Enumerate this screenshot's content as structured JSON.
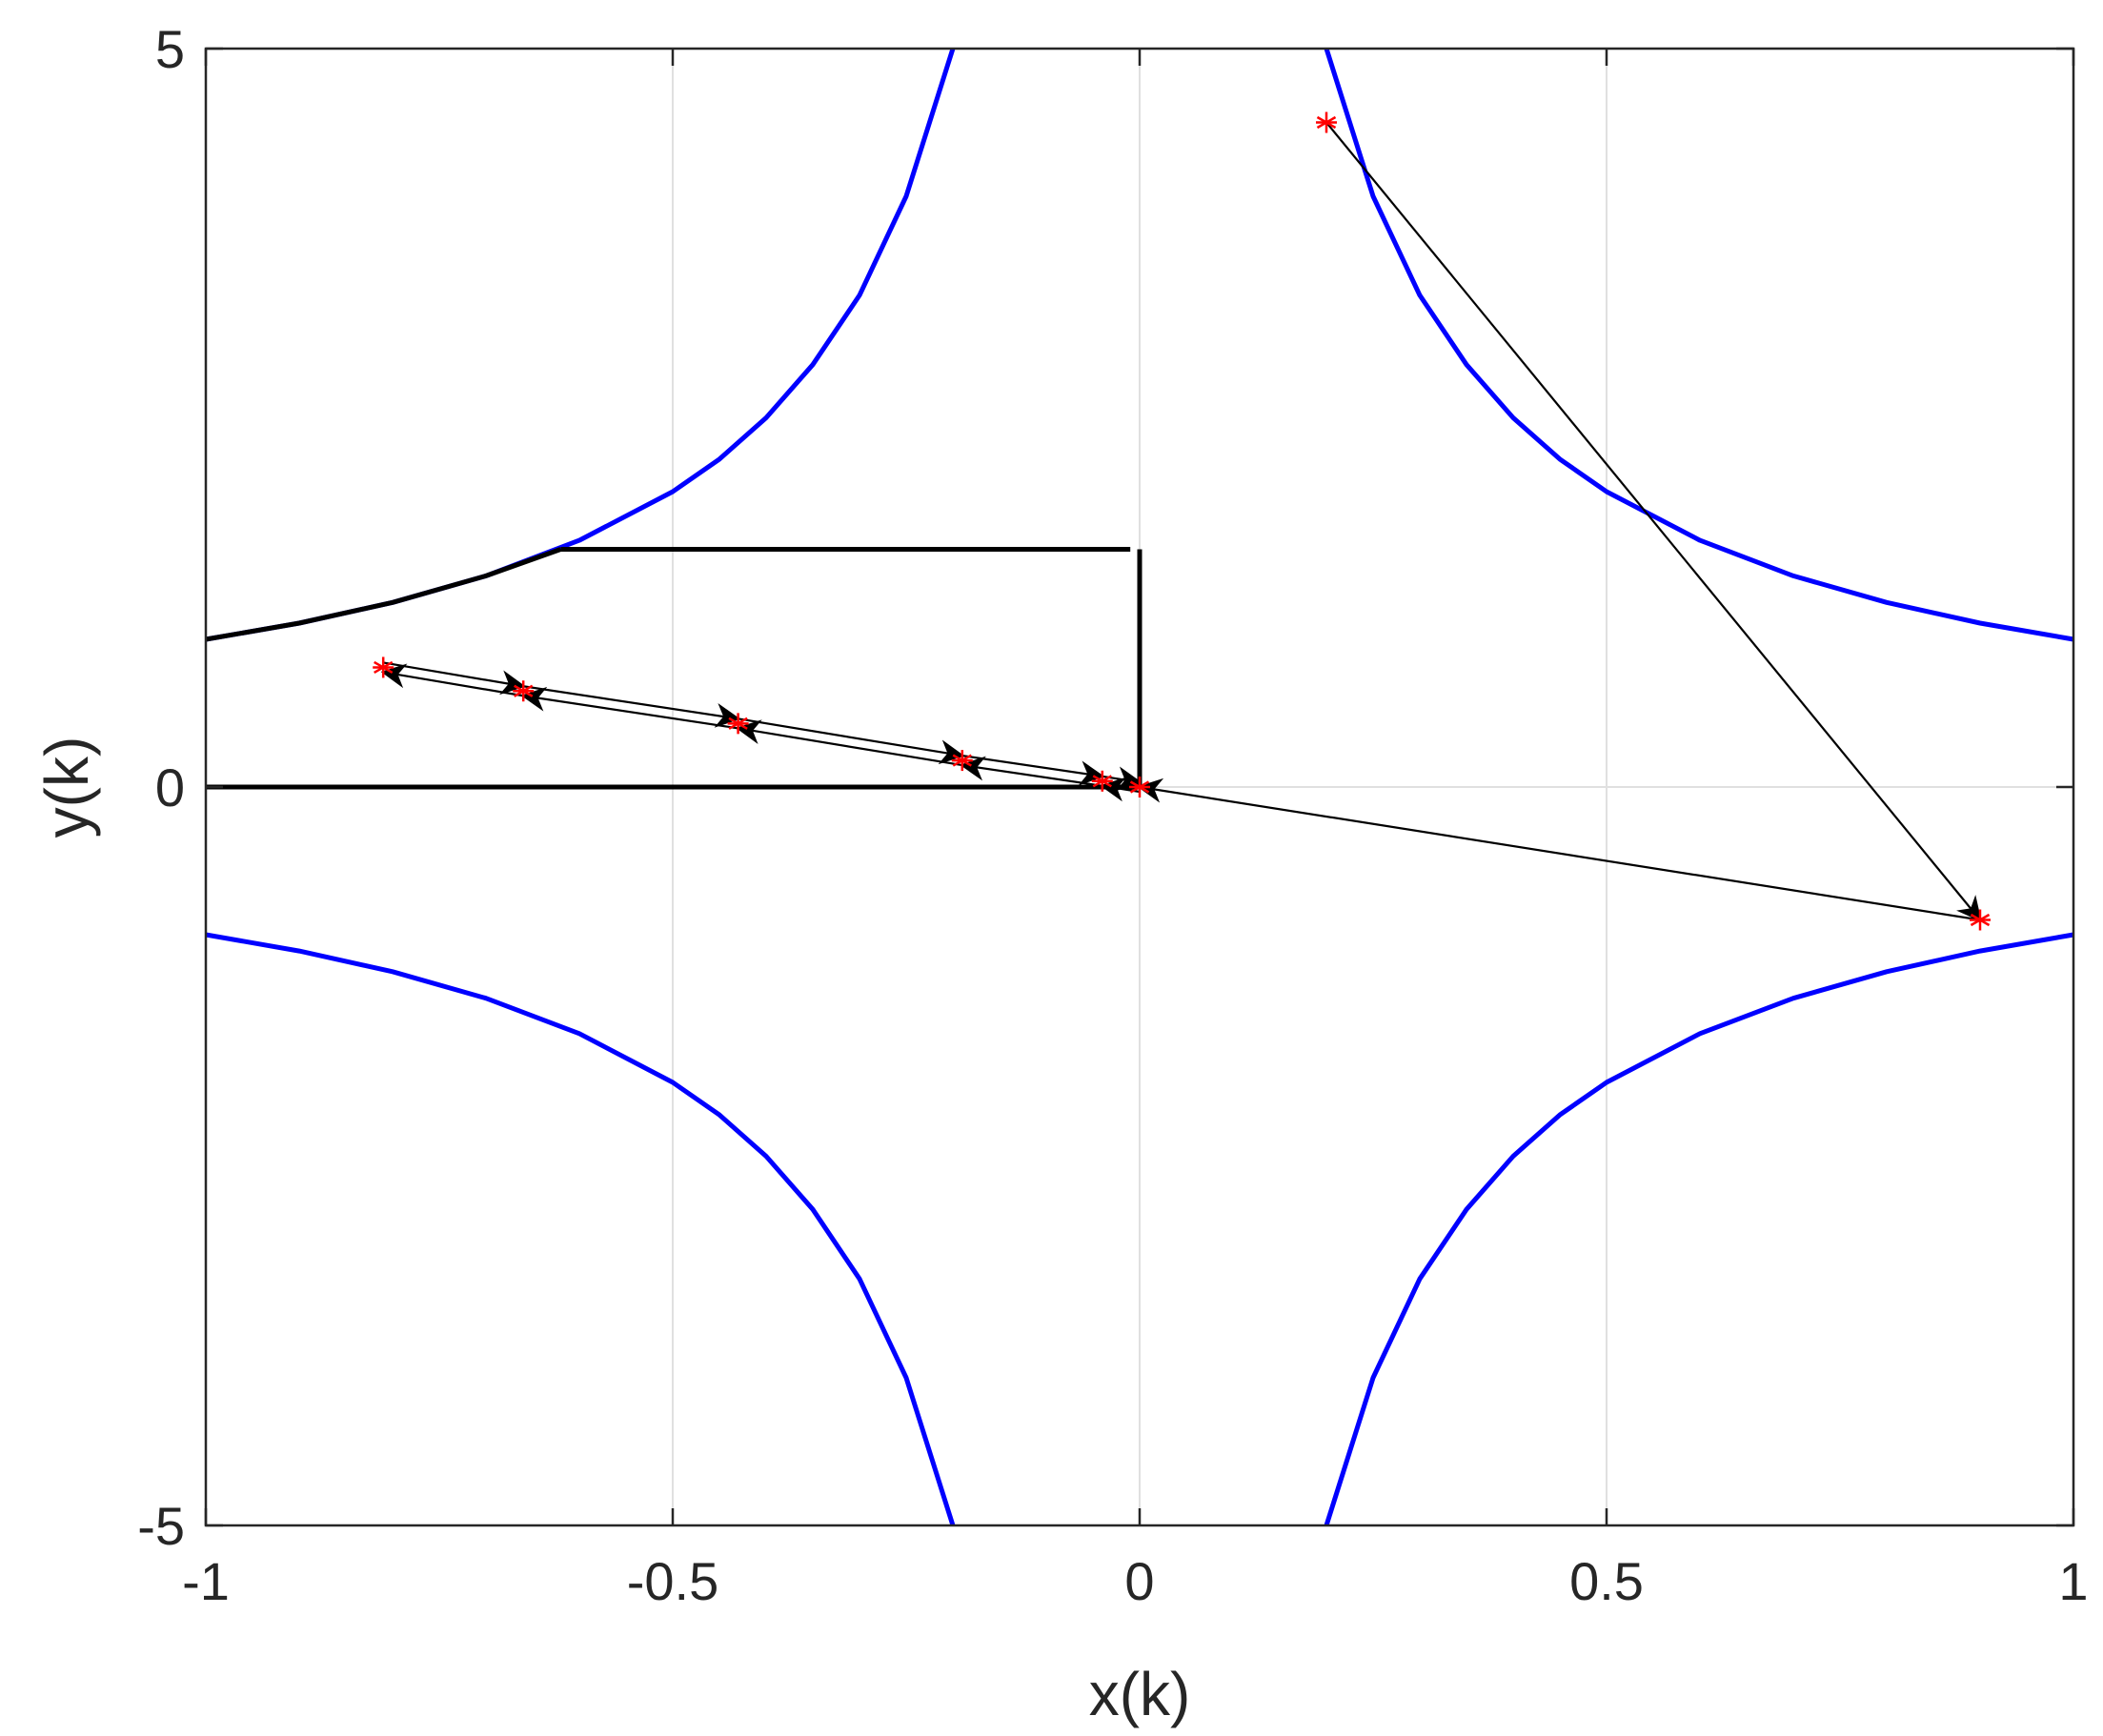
{
  "chart_data": {
    "type": "line",
    "title": "",
    "xlabel": "x(k)",
    "ylabel": "y(k)",
    "xlim": [
      -1,
      1
    ],
    "ylim": [
      -5,
      5
    ],
    "grid": true,
    "xticks": [
      -1,
      -0.5,
      0,
      0.5,
      1
    ],
    "xtick_labels": [
      "-1",
      "-0.5",
      "0",
      "0.5",
      "1"
    ],
    "yticks": [
      -5,
      0,
      5
    ],
    "ytick_labels": [
      "-5",
      "0",
      "5"
    ],
    "colors": {
      "boundary": "#0000ff",
      "region": "#000000",
      "trajectory": "#000000",
      "marker": "#ff0000",
      "grid": "#e0e0e0",
      "axis": "#262626"
    },
    "boundary_curves": [
      {
        "branch": "upper-left",
        "x": [
          -1,
          -0.9,
          -0.8,
          -0.7,
          -0.6,
          -0.5,
          -0.45,
          -0.4,
          -0.35,
          -0.3,
          -0.25,
          -0.2
        ],
        "y": [
          1.0,
          1.11,
          1.25,
          1.43,
          1.67,
          2.0,
          2.22,
          2.5,
          2.86,
          3.33,
          4.0,
          5.0
        ]
      },
      {
        "branch": "upper-right",
        "x": [
          0.2,
          0.25,
          0.3,
          0.35,
          0.4,
          0.45,
          0.5,
          0.6,
          0.7,
          0.8,
          0.9,
          1
        ],
        "y": [
          5.0,
          4.0,
          3.33,
          2.86,
          2.5,
          2.22,
          2.0,
          1.67,
          1.43,
          1.25,
          1.11,
          1.0
        ]
      },
      {
        "branch": "lower-left",
        "x": [
          -1,
          -0.9,
          -0.8,
          -0.7,
          -0.6,
          -0.5,
          -0.45,
          -0.4,
          -0.35,
          -0.3,
          -0.25,
          -0.2
        ],
        "y": [
          -1.0,
          -1.11,
          -1.25,
          -1.43,
          -1.67,
          -2.0,
          -2.22,
          -2.5,
          -2.86,
          -3.33,
          -4.0,
          -5.0
        ]
      },
      {
        "branch": "lower-right",
        "x": [
          0.2,
          0.25,
          0.3,
          0.35,
          0.4,
          0.45,
          0.5,
          0.6,
          0.7,
          0.8,
          0.9,
          1
        ],
        "y": [
          -5.0,
          -4.0,
          -3.33,
          -2.86,
          -2.5,
          -2.22,
          -2.0,
          -1.67,
          -1.43,
          -1.25,
          -1.11,
          -1.0
        ]
      }
    ],
    "region_outline": {
      "segments": [
        {
          "x": [
            -1,
            -0.9,
            -0.8,
            -0.7,
            -0.62
          ],
          "y": [
            1.0,
            1.11,
            1.25,
            1.43,
            1.61
          ]
        },
        {
          "x": [
            -0.62,
            -0.01
          ],
          "y": [
            1.61,
            1.61
          ]
        },
        {
          "x": [
            0,
            0
          ],
          "y": [
            1.61,
            0
          ]
        },
        {
          "x": [
            -1,
            0
          ],
          "y": [
            0,
            0
          ]
        }
      ]
    },
    "trajectory_points": {
      "x": [
        0.2,
        0.9,
        0.0,
        -0.04,
        -0.19,
        -0.43,
        -0.66,
        -0.81,
        -0.66,
        -0.43,
        -0.19,
        -0.04,
        0.0
      ],
      "y": [
        4.5,
        -0.9,
        0.0,
        0.04,
        0.18,
        0.43,
        0.65,
        0.81,
        0.65,
        0.43,
        0.18,
        0.04,
        0.0
      ]
    }
  }
}
